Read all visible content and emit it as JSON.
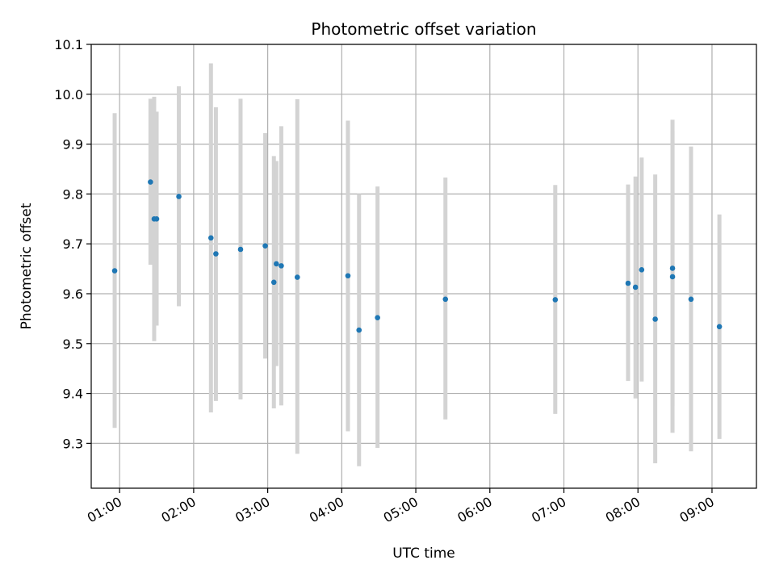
{
  "chart_data": {
    "type": "scatter",
    "title": "Photometric offset variation",
    "xlabel": "UTC time",
    "ylabel": "Photometric offset",
    "grid": true,
    "xlim": [
      "00:37",
      "09:36"
    ],
    "ylim": [
      9.21,
      10.1
    ],
    "x_ticks": [
      "01:00",
      "02:00",
      "03:00",
      "04:00",
      "05:00",
      "06:00",
      "07:00",
      "08:00",
      "09:00"
    ],
    "y_ticks": [
      "9.3",
      "9.4",
      "9.5",
      "9.6",
      "9.7",
      "9.8",
      "9.9",
      "10.0",
      "10.1"
    ],
    "colors": {
      "point": "#1f77b4",
      "errorbar": "#d3d3d3",
      "grid": "#b0b0b0"
    },
    "points": [
      {
        "x": "00:56",
        "y": 9.646,
        "ylow": 9.331,
        "yhigh": 9.962
      },
      {
        "x": "01:25",
        "y": 9.824,
        "ylow": 9.658,
        "yhigh": 9.991
      },
      {
        "x": "01:28",
        "y": 9.75,
        "ylow": 9.505,
        "yhigh": 9.995
      },
      {
        "x": "01:30",
        "y": 9.75,
        "ylow": 9.536,
        "yhigh": 9.965
      },
      {
        "x": "01:48",
        "y": 9.795,
        "ylow": 9.575,
        "yhigh": 10.016
      },
      {
        "x": "02:14",
        "y": 9.712,
        "ylow": 9.362,
        "yhigh": 10.062
      },
      {
        "x": "02:18",
        "y": 9.68,
        "ylow": 9.385,
        "yhigh": 9.974
      },
      {
        "x": "02:38",
        "y": 9.689,
        "ylow": 9.388,
        "yhigh": 9.991
      },
      {
        "x": "02:58",
        "y": 9.696,
        "ylow": 9.47,
        "yhigh": 9.922
      },
      {
        "x": "03:05",
        "y": 9.623,
        "ylow": 9.37,
        "yhigh": 9.876
      },
      {
        "x": "03:07",
        "y": 9.66,
        "ylow": 9.455,
        "yhigh": 9.866
      },
      {
        "x": "03:11",
        "y": 9.656,
        "ylow": 9.376,
        "yhigh": 9.936
      },
      {
        "x": "03:24",
        "y": 9.633,
        "ylow": 9.279,
        "yhigh": 9.99
      },
      {
        "x": "04:05",
        "y": 9.636,
        "ylow": 9.324,
        "yhigh": 9.947
      },
      {
        "x": "04:14",
        "y": 9.527,
        "ylow": 9.254,
        "yhigh": 9.8
      },
      {
        "x": "04:29",
        "y": 9.552,
        "ylow": 9.291,
        "yhigh": 9.815
      },
      {
        "x": "05:24",
        "y": 9.589,
        "ylow": 9.348,
        "yhigh": 9.833
      },
      {
        "x": "06:53",
        "y": 9.588,
        "ylow": 9.359,
        "yhigh": 9.818
      },
      {
        "x": "07:52",
        "y": 9.621,
        "ylow": 9.425,
        "yhigh": 9.819
      },
      {
        "x": "07:58",
        "y": 9.613,
        "ylow": 9.39,
        "yhigh": 9.835
      },
      {
        "x": "08:03",
        "y": 9.648,
        "ylow": 9.424,
        "yhigh": 9.873
      },
      {
        "x": "08:14",
        "y": 9.549,
        "ylow": 9.26,
        "yhigh": 9.839
      },
      {
        "x": "08:28",
        "y": 9.651,
        "ylow": 9.375,
        "yhigh": 9.927
      },
      {
        "x": "08:28",
        "y": 9.634,
        "ylow": 9.321,
        "yhigh": 9.949
      },
      {
        "x": "08:43",
        "y": 9.589,
        "ylow": 9.284,
        "yhigh": 9.895
      },
      {
        "x": "09:06",
        "y": 9.534,
        "ylow": 9.309,
        "yhigh": 9.759
      }
    ]
  }
}
